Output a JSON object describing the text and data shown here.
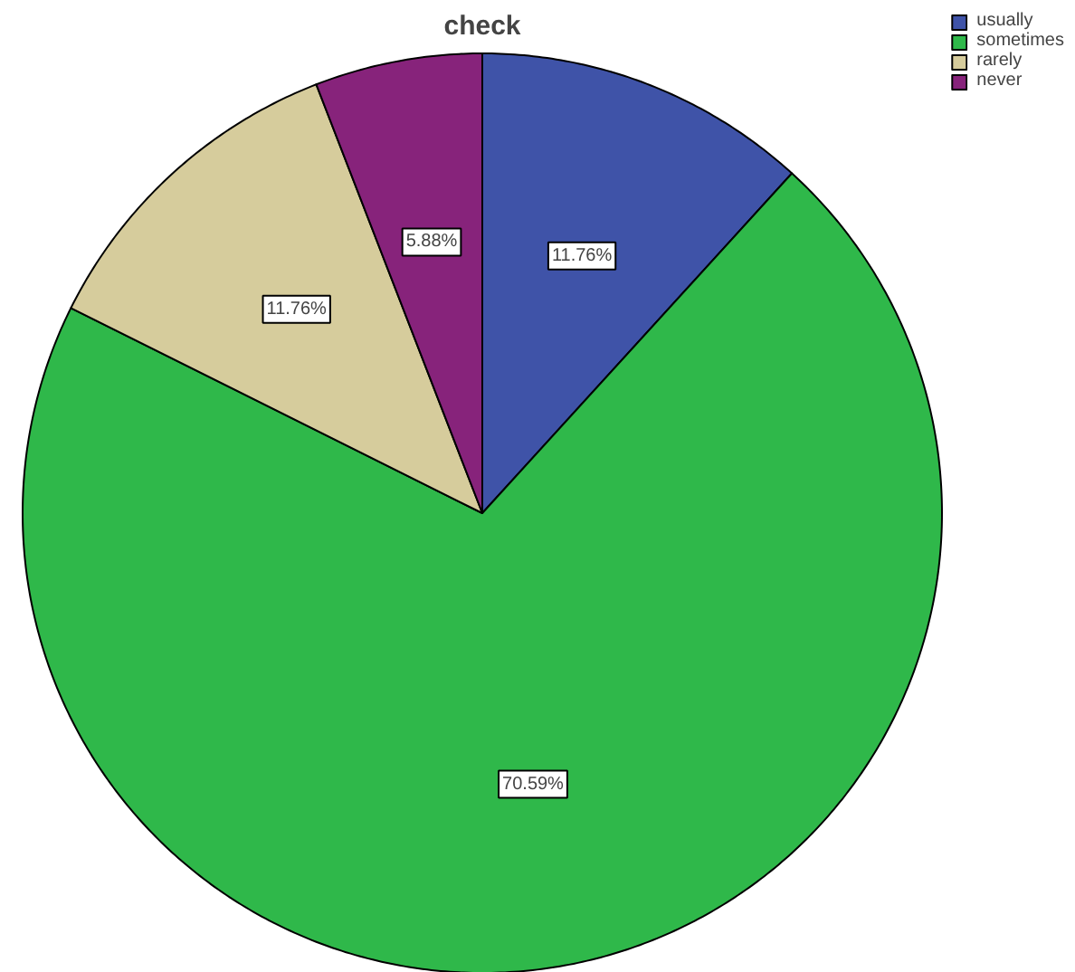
{
  "chart_data": {
    "type": "pie",
    "title": "check",
    "categories": [
      "usually",
      "sometimes",
      "rarely",
      "never"
    ],
    "values": [
      11.76,
      70.59,
      11.76,
      5.88
    ],
    "value_labels": [
      "11.76%",
      "70.59%",
      "11.76%",
      "5.88%"
    ],
    "colors": [
      "#3f53a8",
      "#2fb84a",
      "#d6cc9c",
      "#87237b"
    ],
    "legend": "top right"
  }
}
